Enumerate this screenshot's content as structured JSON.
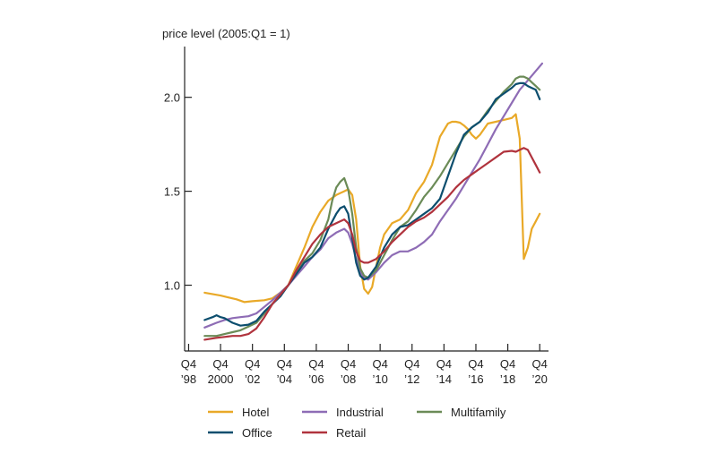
{
  "chart_data": {
    "type": "line",
    "title": "price level (2005:Q1 = 1)",
    "xlabel": "",
    "ylabel": "price level (2005:Q1 = 1)",
    "xlim": [
      1998.5,
      2021.3
    ],
    "ylim": [
      0.65,
      2.27
    ],
    "yticks": [
      {
        "value": 1.0,
        "label": "1.0"
      },
      {
        "value": 1.5,
        "label": "1.5"
      },
      {
        "value": 2.0,
        "label": "2.0"
      }
    ],
    "xticks": [
      {
        "value": 1998.75,
        "line1": "Q4",
        "line2": "’98"
      },
      {
        "value": 2000.75,
        "line1": "Q4",
        "line2": "2000"
      },
      {
        "value": 2002.75,
        "line1": "Q4",
        "line2": "’02"
      },
      {
        "value": 2004.75,
        "line1": "Q4",
        "line2": "’04"
      },
      {
        "value": 2006.75,
        "line1": "Q4",
        "line2": "’06"
      },
      {
        "value": 2008.75,
        "line1": "Q4",
        "line2": "’08"
      },
      {
        "value": 2010.75,
        "line1": "Q4",
        "line2": "’10"
      },
      {
        "value": 2012.75,
        "line1": "Q4",
        "line2": "’12"
      },
      {
        "value": 2014.75,
        "line1": "Q4",
        "line2": "’14"
      },
      {
        "value": 2016.75,
        "line1": "Q4",
        "line2": "’16"
      },
      {
        "value": 2018.75,
        "line1": "Q4",
        "line2": "’18"
      },
      {
        "value": 2020.75,
        "line1": "Q4",
        "line2": "’20"
      }
    ],
    "legend_position": "bottom",
    "grid": false,
    "series": [
      {
        "name": "Hotel",
        "color": "#e9a928",
        "x": [
          1999.75,
          2000.75,
          2001.75,
          2002.25,
          2002.75,
          2003.5,
          2004.0,
          2004.5,
          2005.0,
          2005.5,
          2006.0,
          2006.5,
          2007.0,
          2007.5,
          2008.0,
          2008.5,
          2008.75,
          2009.0,
          2009.25,
          2009.5,
          2009.75,
          2010.0,
          2010.25,
          2010.5,
          2010.75,
          2011.0,
          2011.5,
          2012.0,
          2012.5,
          2013.0,
          2013.5,
          2014.0,
          2014.5,
          2015.0,
          2015.25,
          2015.5,
          2015.75,
          2016.0,
          2016.25,
          2016.5,
          2016.75,
          2017.0,
          2017.5,
          2018.0,
          2018.5,
          2019.0,
          2019.25,
          2019.5,
          2019.75,
          2020.0,
          2020.25,
          2020.5,
          2020.75
        ],
        "y": [
          0.96,
          0.945,
          0.925,
          0.91,
          0.915,
          0.92,
          0.93,
          0.96,
          1.0,
          1.1,
          1.2,
          1.31,
          1.39,
          1.45,
          1.48,
          1.5,
          1.51,
          1.48,
          1.35,
          1.1,
          0.98,
          0.955,
          0.99,
          1.1,
          1.2,
          1.27,
          1.33,
          1.35,
          1.4,
          1.49,
          1.55,
          1.64,
          1.79,
          1.86,
          1.87,
          1.87,
          1.865,
          1.85,
          1.83,
          1.8,
          1.78,
          1.8,
          1.86,
          1.87,
          1.88,
          1.89,
          1.91,
          1.78,
          1.14,
          1.2,
          1.3,
          1.34,
          1.38
        ]
      },
      {
        "name": "Industrial",
        "color": "#8e6cb5",
        "x": [
          1999.75,
          2000.5,
          2001.0,
          2001.5,
          2002.0,
          2002.5,
          2003.0,
          2003.5,
          2004.0,
          2004.5,
          2005.0,
          2005.5,
          2006.0,
          2006.5,
          2007.0,
          2007.5,
          2008.0,
          2008.5,
          2008.75,
          2009.0,
          2009.25,
          2009.5,
          2009.75,
          2010.0,
          2010.5,
          2011.0,
          2011.5,
          2012.0,
          2012.5,
          2013.0,
          2013.5,
          2014.0,
          2014.5,
          2015.0,
          2015.5,
          2016.0,
          2016.5,
          2017.0,
          2017.5,
          2018.0,
          2018.5,
          2019.0,
          2019.5,
          2020.0,
          2020.5,
          2020.9
        ],
        "y": [
          0.775,
          0.8,
          0.815,
          0.825,
          0.83,
          0.835,
          0.85,
          0.885,
          0.92,
          0.96,
          1.0,
          1.05,
          1.1,
          1.15,
          1.19,
          1.25,
          1.28,
          1.3,
          1.28,
          1.22,
          1.14,
          1.07,
          1.04,
          1.03,
          1.07,
          1.12,
          1.16,
          1.18,
          1.18,
          1.2,
          1.23,
          1.27,
          1.34,
          1.4,
          1.46,
          1.53,
          1.6,
          1.67,
          1.75,
          1.83,
          1.9,
          1.97,
          2.04,
          2.09,
          2.14,
          2.18
        ]
      },
      {
        "name": "Multifamily",
        "color": "#6b8b57",
        "x": [
          1999.75,
          2000.5,
          2001.0,
          2001.5,
          2002.0,
          2002.5,
          2003.0,
          2003.5,
          2004.0,
          2004.5,
          2005.0,
          2005.5,
          2006.0,
          2006.5,
          2007.0,
          2007.5,
          2007.75,
          2008.0,
          2008.25,
          2008.5,
          2008.75,
          2009.0,
          2009.25,
          2009.5,
          2009.75,
          2010.0,
          2010.5,
          2011.0,
          2011.5,
          2012.0,
          2012.5,
          2013.0,
          2013.5,
          2014.0,
          2014.5,
          2015.0,
          2015.5,
          2016.0,
          2016.5,
          2017.0,
          2017.5,
          2018.0,
          2018.5,
          2019.0,
          2019.25,
          2019.5,
          2019.75,
          2020.0,
          2020.25,
          2020.5,
          2020.75
        ],
        "y": [
          0.73,
          0.73,
          0.74,
          0.75,
          0.76,
          0.78,
          0.8,
          0.85,
          0.9,
          0.95,
          1.0,
          1.07,
          1.13,
          1.17,
          1.24,
          1.35,
          1.45,
          1.52,
          1.55,
          1.57,
          1.51,
          1.38,
          1.2,
          1.09,
          1.05,
          1.04,
          1.08,
          1.16,
          1.24,
          1.31,
          1.34,
          1.4,
          1.47,
          1.52,
          1.58,
          1.65,
          1.72,
          1.79,
          1.84,
          1.87,
          1.93,
          1.98,
          2.03,
          2.07,
          2.1,
          2.11,
          2.11,
          2.1,
          2.08,
          2.06,
          2.04
        ]
      },
      {
        "name": "Office",
        "color": "#0c4e6e",
        "x": [
          1999.75,
          2000.25,
          2000.5,
          2000.75,
          2001.0,
          2001.5,
          2002.0,
          2002.5,
          2003.0,
          2003.5,
          2004.0,
          2004.5,
          2005.0,
          2005.5,
          2006.0,
          2006.5,
          2007.0,
          2007.5,
          2008.0,
          2008.25,
          2008.5,
          2008.75,
          2009.0,
          2009.25,
          2009.5,
          2009.75,
          2010.0,
          2010.5,
          2011.0,
          2011.5,
          2012.0,
          2012.5,
          2013.0,
          2013.5,
          2014.0,
          2014.5,
          2015.0,
          2015.5,
          2016.0,
          2016.5,
          2017.0,
          2017.5,
          2018.0,
          2018.5,
          2019.0,
          2019.25,
          2019.5,
          2019.75,
          2020.0,
          2020.25,
          2020.5,
          2020.75
        ],
        "y": [
          0.815,
          0.83,
          0.84,
          0.83,
          0.825,
          0.8,
          0.785,
          0.79,
          0.81,
          0.86,
          0.9,
          0.94,
          1.0,
          1.06,
          1.12,
          1.15,
          1.2,
          1.3,
          1.38,
          1.41,
          1.42,
          1.38,
          1.25,
          1.12,
          1.05,
          1.03,
          1.04,
          1.1,
          1.2,
          1.27,
          1.31,
          1.32,
          1.35,
          1.38,
          1.41,
          1.46,
          1.58,
          1.7,
          1.8,
          1.84,
          1.87,
          1.92,
          1.99,
          2.02,
          2.05,
          2.07,
          2.075,
          2.075,
          2.06,
          2.05,
          2.04,
          1.99
        ]
      },
      {
        "name": "Retail",
        "color": "#b0333d",
        "x": [
          1999.75,
          2000.5,
          2001.0,
          2001.5,
          2002.0,
          2002.5,
          2003.0,
          2003.5,
          2004.0,
          2004.5,
          2005.0,
          2005.5,
          2006.0,
          2006.5,
          2007.0,
          2007.5,
          2008.0,
          2008.5,
          2008.75,
          2009.0,
          2009.25,
          2009.5,
          2009.75,
          2010.0,
          2010.5,
          2011.0,
          2011.5,
          2012.0,
          2012.5,
          2013.0,
          2013.5,
          2014.0,
          2014.5,
          2015.0,
          2015.5,
          2016.0,
          2016.5,
          2017.0,
          2017.5,
          2018.0,
          2018.5,
          2019.0,
          2019.25,
          2019.5,
          2019.75,
          2020.0,
          2020.25,
          2020.5,
          2020.75
        ],
        "y": [
          0.71,
          0.72,
          0.725,
          0.73,
          0.73,
          0.74,
          0.77,
          0.83,
          0.9,
          0.95,
          1.0,
          1.08,
          1.15,
          1.22,
          1.27,
          1.31,
          1.33,
          1.35,
          1.33,
          1.27,
          1.18,
          1.13,
          1.12,
          1.12,
          1.14,
          1.18,
          1.23,
          1.27,
          1.31,
          1.34,
          1.36,
          1.39,
          1.43,
          1.47,
          1.52,
          1.56,
          1.59,
          1.62,
          1.65,
          1.68,
          1.71,
          1.715,
          1.71,
          1.72,
          1.73,
          1.72,
          1.68,
          1.64,
          1.6
        ]
      }
    ]
  }
}
